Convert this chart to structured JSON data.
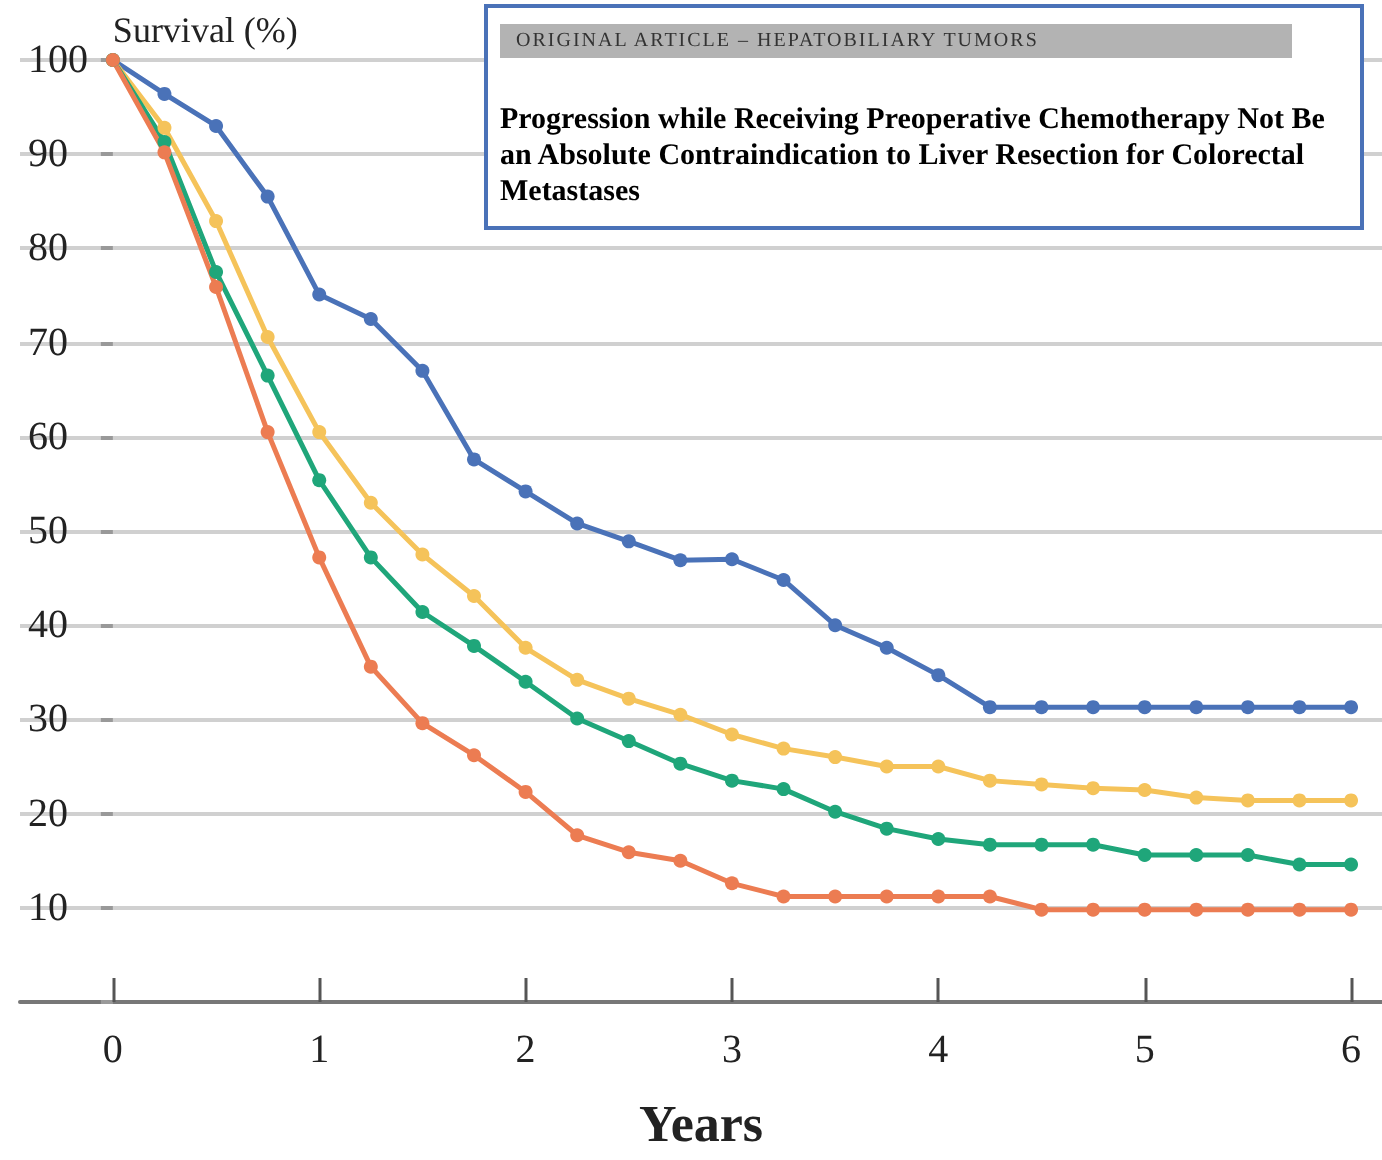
{
  "chart_data": {
    "type": "line",
    "xlabel": "Years",
    "ylabel": "Survival (%)",
    "x": [
      0,
      0.25,
      0.5,
      0.75,
      1,
      1.25,
      1.5,
      1.75,
      2,
      2.25,
      2.5,
      2.75,
      3,
      3.25,
      3.5,
      3.75,
      4,
      4.25,
      4.5,
      4.75,
      5,
      5.25,
      5.5,
      5.75,
      6
    ],
    "series": [
      {
        "color": "#4a72b8",
        "values": [
          100,
          96.4,
          93,
          85.5,
          75.1,
          72.5,
          67,
          57.6,
          54.2,
          50.8,
          48.9,
          46.9,
          47,
          44.8,
          40,
          37.6,
          34.7,
          31.3,
          31.3,
          31.3,
          31.3,
          31.3,
          31.3,
          31.3,
          31.3
        ]
      },
      {
        "color": "#f5c35a",
        "values": [
          100,
          92.8,
          82.9,
          70.6,
          60.5,
          53,
          47.5,
          43.1,
          37.6,
          34.2,
          32.2,
          30.5,
          28.4,
          26.9,
          26,
          25,
          25,
          23.5,
          23.1,
          22.7,
          22.5,
          21.7,
          21.4,
          21.4,
          21.4
        ]
      },
      {
        "color": "#1fa67a",
        "values": [
          100,
          91.3,
          77.5,
          66.5,
          55.4,
          47.2,
          41.4,
          37.8,
          34,
          30.1,
          27.7,
          25.3,
          23.5,
          22.6,
          20.2,
          18.4,
          17.3,
          16.7,
          16.7,
          16.7,
          15.6,
          15.6,
          15.6,
          14.6,
          14.6
        ]
      },
      {
        "color": "#ec7c52",
        "values": [
          100,
          90.2,
          75.9,
          60.5,
          47.2,
          35.6,
          29.6,
          26.2,
          22.3,
          17.7,
          15.9,
          15,
          12.6,
          11.2,
          11.2,
          11.2,
          11.2,
          11.2,
          9.8,
          9.8,
          9.8,
          9.8,
          9.8,
          9.8,
          9.8
        ]
      }
    ],
    "xlim": [
      -0.45,
      6.15
    ],
    "xticks": [
      0,
      1,
      2,
      3,
      4,
      5,
      6
    ],
    "ylim": [
      0,
      100
    ],
    "yticks": [
      {
        "value": 0,
        "label": null
      },
      10,
      20,
      30,
      40,
      50,
      60,
      70,
      80,
      90,
      100
    ],
    "grid": "y",
    "marker": "circle",
    "line_style": "solid",
    "annotations": [
      "ORIGINAL ARTICLE – HEPATOBILIARY TUMORS",
      "Progression while Receiving Preoperative Chemotherapy Not Be an Absolute Contraindication to Liver Resection for Colorectal Metastases"
    ]
  }
}
